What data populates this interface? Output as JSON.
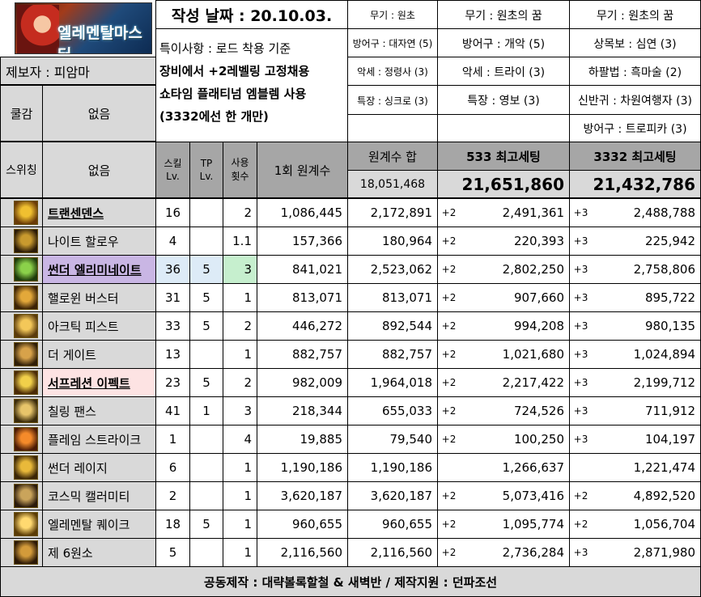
{
  "header": {
    "date": "작성 날짜 : 20.10.03.",
    "reporter": "제보자 : 피암마",
    "notes": [
      "특이사항 : 로드 착용 기준",
      "장비에서 +2레벨링 고정채용",
      "쇼타임 플래티넘 엠블렘 사용",
      "(3332에선 한 개만)"
    ],
    "cooldown_label": "쿨감",
    "cooldown_value": "없음",
    "switching_label": "스위칭",
    "switching_value": "없음",
    "logo_text": "엘레멘탈마스터"
  },
  "gear_columns": [
    [
      "무기 : 원초",
      "방어구 : 대자연 (5)",
      "악세 : 정령사 (3)",
      "특장 : 싱크로 (3)"
    ],
    [
      "무기 : 원초의 꿈",
      "방어구 : 개악 (5)",
      "악세 : 트라이 (3)",
      "특장 : 영보 (3)"
    ],
    [
      "무기 : 원초의 꿈",
      "상목보 : 심연 (3)",
      "하팔법 : 흑마술 (2)",
      "신반귀 : 차원여행자 (3)",
      "방어구 : 트로피카 (3)"
    ]
  ],
  "table_header": {
    "skill_lv": "스킬 Lv.",
    "tp_lv": "TP Lv.",
    "use_count": "사용 횟수",
    "one_hit": "1회 원계수",
    "sum_label": "원계수 합",
    "sum_value": "18,051,468",
    "set533_label": "533 최고세팅",
    "set533_value": "21,651,860",
    "set3332_label": "3332 최고세팅",
    "set3332_value": "21,432,786"
  },
  "rows": [
    {
      "name": "트랜센덴스",
      "lv": "16",
      "tp": "",
      "cnt": "2",
      "one": "1,086,445",
      "sum": "2,172,891",
      "b1": "+2",
      "v1": "2,491,361",
      "b2": "+3",
      "v2": "2,488,788",
      "style": "bold"
    },
    {
      "name": "나이트 할로우",
      "lv": "4",
      "tp": "",
      "cnt": "1.1",
      "one": "157,366",
      "sum": "180,964",
      "b1": "+2",
      "v1": "220,393",
      "b2": "+3",
      "v2": "225,942",
      "style": ""
    },
    {
      "name": "썬더 엘리미네이트",
      "lv": "36",
      "tp": "5",
      "cnt": "3",
      "one": "841,021",
      "sum": "2,523,062",
      "b1": "+2",
      "v1": "2,802,250",
      "b2": "+3",
      "v2": "2,758,806",
      "style": "purple"
    },
    {
      "name": "핼로윈 버스터",
      "lv": "31",
      "tp": "5",
      "cnt": "1",
      "one": "813,071",
      "sum": "813,071",
      "b1": "+2",
      "v1": "907,660",
      "b2": "+3",
      "v2": "895,722",
      "style": ""
    },
    {
      "name": "아크틱 피스트",
      "lv": "33",
      "tp": "5",
      "cnt": "2",
      "one": "446,272",
      "sum": "892,544",
      "b1": "+2",
      "v1": "994,208",
      "b2": "+3",
      "v2": "980,135",
      "style": ""
    },
    {
      "name": "더 게이트",
      "lv": "13",
      "tp": "",
      "cnt": "1",
      "one": "882,757",
      "sum": "882,757",
      "b1": "+2",
      "v1": "1,021,680",
      "b2": "+3",
      "v2": "1,024,894",
      "style": ""
    },
    {
      "name": "서프레션 이펙트",
      "lv": "23",
      "tp": "5",
      "cnt": "2",
      "one": "982,009",
      "sum": "1,964,018",
      "b1": "+2",
      "v1": "2,217,422",
      "b2": "+3",
      "v2": "2,199,712",
      "style": "pink"
    },
    {
      "name": "칠링 팬스",
      "lv": "41",
      "tp": "1",
      "cnt": "3",
      "one": "218,344",
      "sum": "655,033",
      "b1": "+2",
      "v1": "724,526",
      "b2": "+3",
      "v2": "711,912",
      "style": ""
    },
    {
      "name": "플레임 스트라이크",
      "lv": "1",
      "tp": "",
      "cnt": "4",
      "one": "19,885",
      "sum": "79,540",
      "b1": "+2",
      "v1": "100,250",
      "b2": "+3",
      "v2": "104,197",
      "style": ""
    },
    {
      "name": "썬더 레이지",
      "lv": "6",
      "tp": "",
      "cnt": "1",
      "one": "1,190,186",
      "sum": "1,190,186",
      "b1": "",
      "v1": "1,266,637",
      "b2": "",
      "v2": "1,221,474",
      "style": ""
    },
    {
      "name": "코스믹 캘러미티",
      "lv": "2",
      "tp": "",
      "cnt": "1",
      "one": "3,620,187",
      "sum": "3,620,187",
      "b1": "+2",
      "v1": "5,073,416",
      "b2": "+2",
      "v2": "4,892,520",
      "style": ""
    },
    {
      "name": "엘레멘탈 퀘이크",
      "lv": "18",
      "tp": "5",
      "cnt": "1",
      "one": "960,655",
      "sum": "960,655",
      "b1": "+2",
      "v1": "1,095,774",
      "b2": "+2",
      "v2": "1,056,704",
      "style": ""
    },
    {
      "name": "제 6원소",
      "lv": "5",
      "tp": "",
      "cnt": "1",
      "one": "2,116,560",
      "sum": "2,116,560",
      "b1": "+2",
      "v1": "2,736,284",
      "b2": "+3",
      "v2": "2,871,980",
      "style": ""
    }
  ],
  "footer": "공동제작 : 대략볼록할철 & 새벽반 / 제작지원 : 던파조선",
  "colors": {
    "gray": "#d9d9d9",
    "purple": "#c9b6e4",
    "pink": "#fde3e3",
    "lightblue": "#ddebf7",
    "lightgreen": "#c6efce"
  }
}
